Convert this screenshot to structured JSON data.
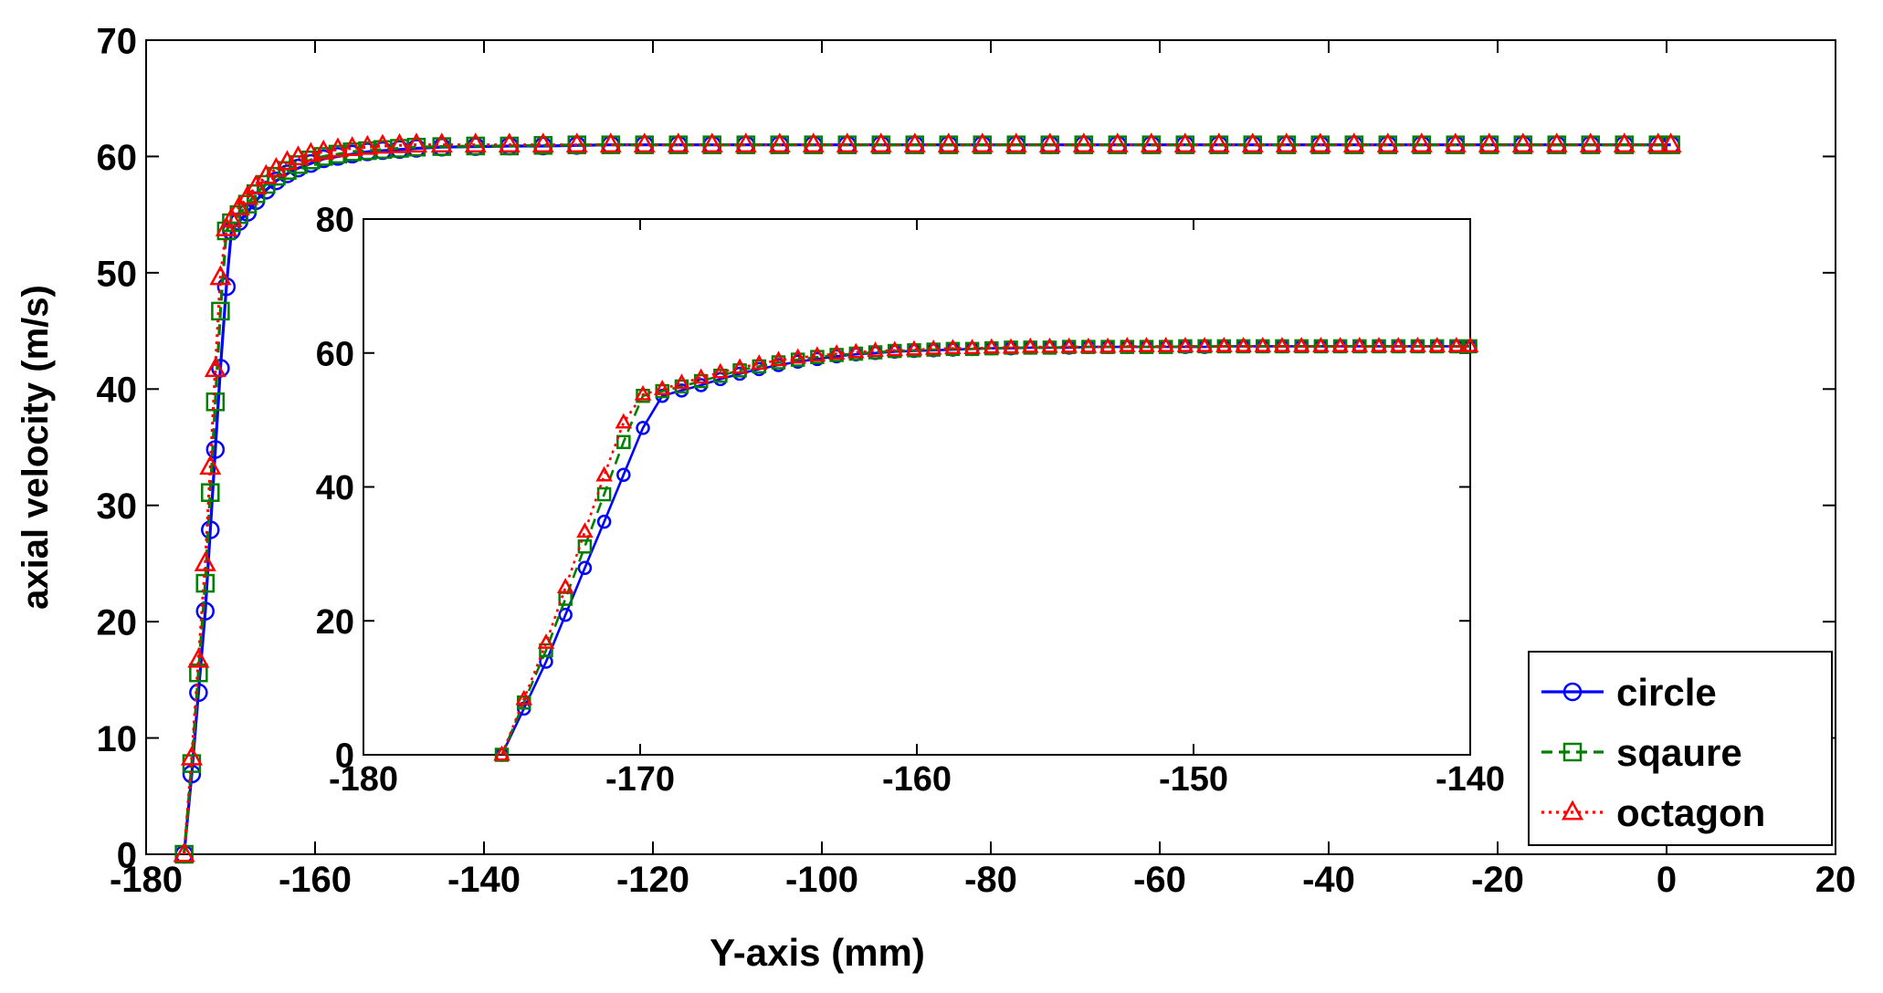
{
  "chart_data": [
    {
      "id": "main",
      "type": "line",
      "title": "",
      "xlabel": "Y-axis (mm)",
      "ylabel": "axial velocity (m/s)",
      "xlim": [
        -180,
        20
      ],
      "ylim": [
        0,
        70
      ],
      "xticks": [
        -180,
        -160,
        -140,
        -120,
        -100,
        -80,
        -60,
        -40,
        -20,
        0,
        20
      ],
      "yticks": [
        0,
        10,
        20,
        30,
        40,
        50,
        60,
        70
      ],
      "xtick_labels": [
        "-180",
        "-160",
        "-140",
        "-120",
        "-100",
        "-80",
        "-60",
        "-40",
        "-20",
        "0",
        "20"
      ],
      "ytick_labels": [
        "0",
        "10",
        "20",
        "30",
        "40",
        "50",
        "60",
        "70"
      ],
      "grid": false,
      "legend": "bottom-right",
      "series": [
        {
          "name": "circle",
          "color": "#0000ff",
          "dash": "solid",
          "marker": "circle",
          "x": [
            -175.5,
            -174.6,
            -173.8,
            -173.0,
            -172.4,
            -171.8,
            -171.2,
            -170.5,
            -169.9,
            -169.0,
            -168.0,
            -167.0,
            -165.8,
            -164.6,
            -163.3,
            -162.0,
            -160.5,
            -159.0,
            -157.3,
            -155.6,
            -153.8,
            -152.0,
            -150.0,
            -148.0,
            -145.0,
            -141.0,
            -137.0,
            -133.0,
            -129.0,
            -125.0,
            -121.0,
            -117.0,
            -113.0,
            -109.0,
            -105.0,
            -101.0,
            -97.0,
            -93.0,
            -89.0,
            -85.0,
            -81.0,
            -77.0,
            -73.0,
            -69.0,
            -65.0,
            -61.0,
            -57.0,
            -53.0,
            -49.0,
            -45.0,
            -41.0,
            -37.0,
            -33.0,
            -29.0,
            -25.0,
            -21.0,
            -17.0,
            -13.0,
            -9.0,
            -5.0,
            -1.0,
            0.5
          ],
          "y": [
            0,
            6.9,
            13.9,
            20.9,
            27.9,
            34.8,
            41.8,
            48.8,
            53.6,
            54.4,
            55.2,
            56.2,
            57.1,
            57.9,
            58.5,
            59.0,
            59.4,
            59.8,
            60.0,
            60.2,
            60.4,
            60.5,
            60.6,
            60.7,
            60.8,
            60.85,
            60.9,
            60.9,
            60.95,
            61.0,
            61.0,
            61.0,
            61.0,
            61.0,
            61.0,
            61.0,
            61.0,
            61.0,
            61.0,
            61.0,
            61.0,
            61.0,
            61.0,
            61.0,
            61.0,
            61.0,
            61.0,
            61.0,
            61.0,
            61.0,
            61.0,
            61.0,
            61.0,
            61.0,
            61.0,
            61.0,
            61.0,
            61.0,
            61.0,
            61.0,
            61.0,
            61.0
          ]
        },
        {
          "name": "sqaure",
          "color": "#008000",
          "dash": "dashed",
          "marker": "square",
          "x": [
            -175.5,
            -174.6,
            -173.8,
            -173.0,
            -172.4,
            -171.8,
            -171.2,
            -170.5,
            -169.9,
            -169.0,
            -168.0,
            -167.0,
            -165.8,
            -164.6,
            -163.3,
            -162.0,
            -160.5,
            -159.0,
            -157.3,
            -155.6,
            -153.8,
            -152.0,
            -150.0,
            -148.0,
            -145.0,
            -141.0,
            -137.0,
            -133.0,
            -129.0,
            -125.0,
            -121.0,
            -117.0,
            -113.0,
            -109.0,
            -105.0,
            -101.0,
            -97.0,
            -93.0,
            -89.0,
            -85.0,
            -81.0,
            -77.0,
            -73.0,
            -69.0,
            -65.0,
            -61.0,
            -57.0,
            -53.0,
            -49.0,
            -45.0,
            -41.0,
            -37.0,
            -33.0,
            -29.0,
            -25.0,
            -21.0,
            -17.0,
            -13.0,
            -9.0,
            -5.0,
            -1.0,
            0.5
          ],
          "y": [
            0,
            7.8,
            15.6,
            23.3,
            31.1,
            38.9,
            46.7,
            53.6,
            54.3,
            55.0,
            55.9,
            56.8,
            57.6,
            58.3,
            58.8,
            59.3,
            59.7,
            60.0,
            60.2,
            60.4,
            60.5,
            60.6,
            60.7,
            60.8,
            60.85,
            60.9,
            60.9,
            60.95,
            61.0,
            61.0,
            61.0,
            61.0,
            61.0,
            61.0,
            61.0,
            61.0,
            61.0,
            61.0,
            61.0,
            61.0,
            61.0,
            61.0,
            61.0,
            61.0,
            61.0,
            61.0,
            61.0,
            61.0,
            61.0,
            61.0,
            61.0,
            61.0,
            61.0,
            61.0,
            61.0,
            61.0,
            61.0,
            61.0,
            61.0,
            61.0,
            61.0,
            61.0
          ]
        },
        {
          "name": "octagon",
          "color": "#ff0000",
          "dash": "dotted",
          "marker": "triangle",
          "x": [
            -175.5,
            -174.6,
            -173.8,
            -173.0,
            -172.4,
            -171.8,
            -171.2,
            -170.5,
            -169.9,
            -169.0,
            -168.0,
            -167.0,
            -165.8,
            -164.6,
            -163.3,
            -162.0,
            -160.5,
            -159.0,
            -157.3,
            -155.6,
            -153.8,
            -152.0,
            -150.0,
            -148.0,
            -145.0,
            -141.0,
            -137.0,
            -133.0,
            -129.0,
            -125.0,
            -121.0,
            -117.0,
            -113.0,
            -109.0,
            -105.0,
            -101.0,
            -97.0,
            -93.0,
            -89.0,
            -85.0,
            -81.0,
            -77.0,
            -73.0,
            -69.0,
            -65.0,
            -61.0,
            -57.0,
            -53.0,
            -49.0,
            -45.0,
            -41.0,
            -37.0,
            -33.0,
            -29.0,
            -25.0,
            -21.0,
            -17.0,
            -13.0,
            -9.0,
            -5.0,
            -1.0,
            0.5
          ],
          "y": [
            0,
            8.3,
            16.7,
            25.0,
            33.3,
            41.7,
            49.6,
            53.8,
            54.6,
            55.6,
            56.5,
            57.4,
            58.3,
            58.9,
            59.5,
            59.9,
            60.2,
            60.4,
            60.6,
            60.7,
            60.8,
            60.9,
            60.95,
            61.0,
            61.0,
            61.0,
            61.0,
            61.0,
            61.0,
            61.0,
            61.0,
            61.0,
            61.0,
            61.0,
            61.0,
            61.0,
            61.0,
            61.0,
            61.0,
            61.0,
            61.0,
            61.0,
            61.0,
            61.0,
            61.0,
            61.0,
            61.0,
            61.0,
            61.0,
            61.0,
            61.0,
            61.0,
            61.0,
            61.0,
            61.0,
            61.0,
            61.0,
            61.0,
            61.0,
            61.0,
            61.0,
            61.0
          ]
        }
      ]
    },
    {
      "id": "inset",
      "type": "line",
      "title": "",
      "xlabel": "",
      "ylabel": "",
      "xlim": [
        -180,
        -140
      ],
      "ylim": [
        0,
        80
      ],
      "xticks": [
        -180,
        -170,
        -160,
        -150,
        -140
      ],
      "yticks": [
        0,
        20,
        40,
        60,
        80
      ],
      "xtick_labels": [
        "-180",
        "-170",
        "-160",
        "-150",
        "-140"
      ],
      "ytick_labels": [
        "0",
        "20",
        "40",
        "60",
        "80"
      ],
      "grid": false,
      "series": [
        {
          "name": "circle",
          "color": "#0000ff",
          "dash": "solid",
          "marker": "circle",
          "x": [
            -175.0,
            -174.2,
            -173.4,
            -172.7,
            -172.0,
            -171.3,
            -170.6,
            -169.9,
            -169.2,
            -168.5,
            -167.8,
            -167.1,
            -166.4,
            -165.7,
            -165.0,
            -164.3,
            -163.6,
            -162.9,
            -162.2,
            -161.5,
            -160.8,
            -160.1,
            -159.4,
            -158.7,
            -158.0,
            -157.3,
            -156.6,
            -155.9,
            -155.2,
            -154.5,
            -153.8,
            -153.1,
            -152.4,
            -151.7,
            -151.0,
            -150.3,
            -149.6,
            -148.9,
            -148.2,
            -147.5,
            -146.8,
            -146.1,
            -145.4,
            -144.7,
            -144.0,
            -143.3,
            -142.6,
            -141.9,
            -141.2,
            -140.5,
            -140.0
          ],
          "y": [
            0,
            6.9,
            13.9,
            20.9,
            27.9,
            34.8,
            41.8,
            48.8,
            53.6,
            54.4,
            55.2,
            56.1,
            56.9,
            57.6,
            58.2,
            58.7,
            59.1,
            59.5,
            59.8,
            60.0,
            60.2,
            60.3,
            60.4,
            60.5,
            60.6,
            60.7,
            60.7,
            60.8,
            60.8,
            60.8,
            60.9,
            60.9,
            60.9,
            60.9,
            60.9,
            60.9,
            60.9,
            61.0,
            61.0,
            61.0,
            61.0,
            61.0,
            61.0,
            61.0,
            61.0,
            61.0,
            61.0,
            61.0,
            61.0,
            61.0,
            61.0
          ]
        },
        {
          "name": "sqaure",
          "color": "#008000",
          "dash": "dashed",
          "marker": "square",
          "x": [
            -175.0,
            -174.2,
            -173.4,
            -172.7,
            -172.0,
            -171.3,
            -170.6,
            -169.9,
            -169.2,
            -168.5,
            -167.8,
            -167.1,
            -166.4,
            -165.7,
            -165.0,
            -164.3,
            -163.6,
            -162.9,
            -162.2,
            -161.5,
            -160.8,
            -160.1,
            -159.4,
            -158.7,
            -158.0,
            -157.3,
            -156.6,
            -155.9,
            -155.2,
            -154.5,
            -153.8,
            -153.1,
            -152.4,
            -151.7,
            -151.0,
            -150.3,
            -149.6,
            -148.9,
            -148.2,
            -147.5,
            -146.8,
            -146.1,
            -145.4,
            -144.7,
            -144.0,
            -143.3,
            -142.6,
            -141.9,
            -141.2,
            -140.5,
            -140.0
          ],
          "y": [
            0,
            7.8,
            15.6,
            23.3,
            31.1,
            38.9,
            46.7,
            53.6,
            54.3,
            55.0,
            55.8,
            56.6,
            57.4,
            58.0,
            58.6,
            59.0,
            59.4,
            59.7,
            59.9,
            60.1,
            60.3,
            60.4,
            60.5,
            60.6,
            60.6,
            60.7,
            60.8,
            60.8,
            60.8,
            60.9,
            60.9,
            60.9,
            60.9,
            60.9,
            60.9,
            61.0,
            61.0,
            61.0,
            61.0,
            61.0,
            61.0,
            61.0,
            61.0,
            61.0,
            61.0,
            61.0,
            61.0,
            61.0,
            61.0,
            61.0,
            61.0
          ]
        },
        {
          "name": "octagon",
          "color": "#ff0000",
          "dash": "dotted",
          "marker": "triangle",
          "x": [
            -175.0,
            -174.2,
            -173.4,
            -172.7,
            -172.0,
            -171.3,
            -170.6,
            -169.9,
            -169.2,
            -168.5,
            -167.8,
            -167.1,
            -166.4,
            -165.7,
            -165.0,
            -164.3,
            -163.6,
            -162.9,
            -162.2,
            -161.5,
            -160.8,
            -160.1,
            -159.4,
            -158.7,
            -158.0,
            -157.3,
            -156.6,
            -155.9,
            -155.2,
            -154.5,
            -153.8,
            -153.1,
            -152.4,
            -151.7,
            -151.0,
            -150.3,
            -149.6,
            -148.9,
            -148.2,
            -147.5,
            -146.8,
            -146.1,
            -145.4,
            -144.7,
            -144.0,
            -143.3,
            -142.6,
            -141.9,
            -141.2,
            -140.5,
            -140.0
          ],
          "y": [
            0,
            8.3,
            16.7,
            25.0,
            33.3,
            41.7,
            49.6,
            53.8,
            54.6,
            55.5,
            56.3,
            57.1,
            57.8,
            58.4,
            58.9,
            59.3,
            59.6,
            59.9,
            60.1,
            60.3,
            60.4,
            60.5,
            60.6,
            60.7,
            60.7,
            60.8,
            60.8,
            60.9,
            60.9,
            60.9,
            60.9,
            60.9,
            61.0,
            61.0,
            61.0,
            61.0,
            61.0,
            61.0,
            61.0,
            61.0,
            61.0,
            61.0,
            61.0,
            61.0,
            61.0,
            61.0,
            61.0,
            61.0,
            61.0,
            61.0,
            61.0
          ]
        }
      ]
    }
  ]
}
